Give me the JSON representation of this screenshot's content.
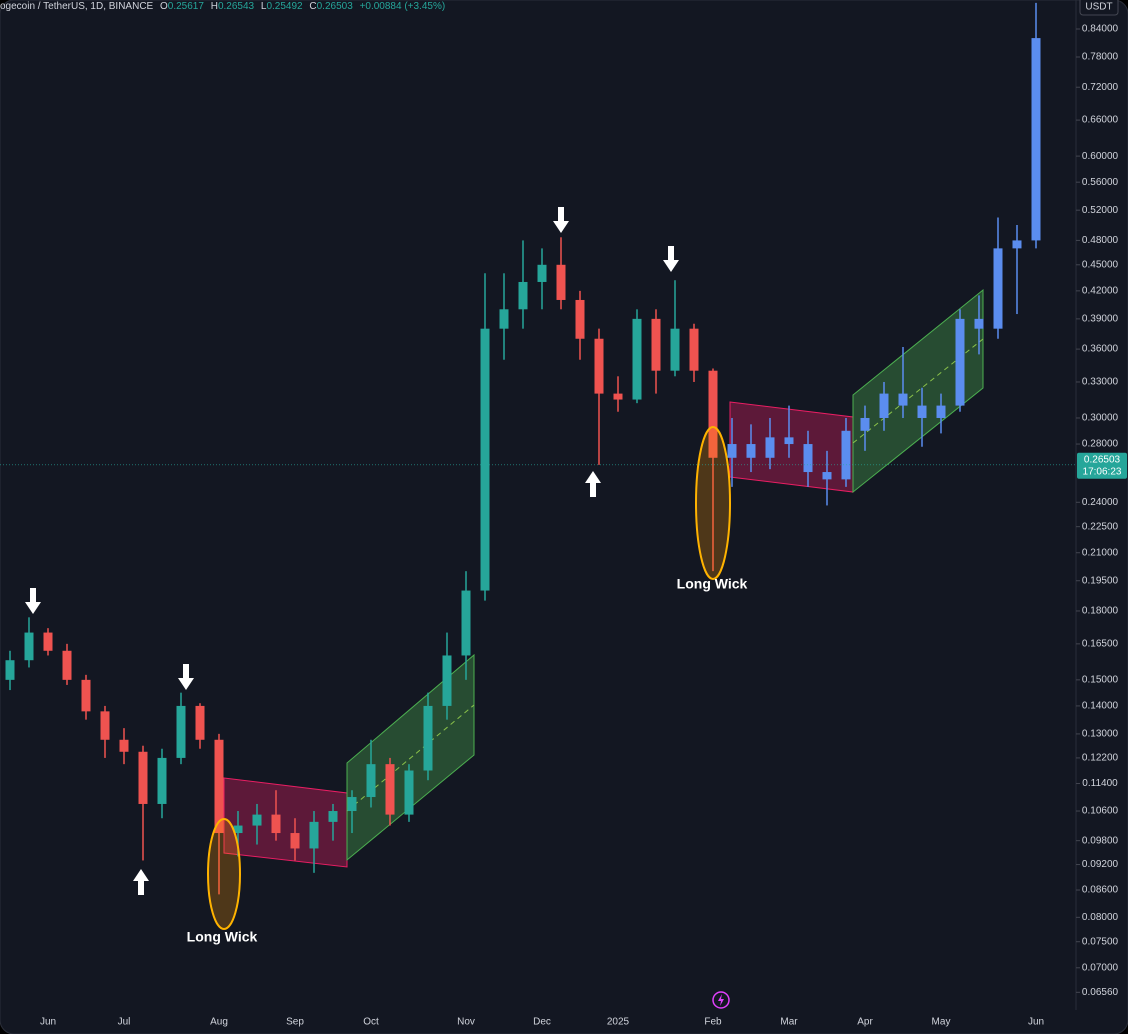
{
  "header": {
    "symbol": "ogecoin / TetherUS, 1D, BINANCE",
    "ohlc": [
      {
        "label": "O",
        "value": "0.25617"
      },
      {
        "label": "H",
        "value": "0.26543"
      },
      {
        "label": "L",
        "value": "0.25492"
      },
      {
        "label": "C",
        "value": "0.26503"
      }
    ],
    "change": "+0.00884 (+3.45%)"
  },
  "currency": "USDT",
  "annotations": [
    "Long Wick",
    "Long Wick"
  ],
  "chart_data": {
    "type": "candlestick",
    "log_scale": true,
    "grid": false,
    "up_color": "#26a69a",
    "down_color": "#ef5350",
    "projection_color": "#5b8def",
    "current_price": {
      "value": 0.26503,
      "label": "0.26503"
    },
    "countdown": "17:06:23",
    "ylim": [
      0.0626,
      0.907
    ],
    "yticks": [
      {
        "value": 0.84,
        "label": "0.84000"
      },
      {
        "value": 0.78,
        "label": "0.78000"
      },
      {
        "value": 0.72,
        "label": "0.72000"
      },
      {
        "value": 0.66,
        "label": "0.66000"
      },
      {
        "value": 0.6,
        "label": "0.60000"
      },
      {
        "value": 0.56,
        "label": "0.56000"
      },
      {
        "value": 0.52,
        "label": "0.52000"
      },
      {
        "value": 0.48,
        "label": "0.48000"
      },
      {
        "value": 0.45,
        "label": "0.45000"
      },
      {
        "value": 0.42,
        "label": "0.42000"
      },
      {
        "value": 0.39,
        "label": "0.39000"
      },
      {
        "value": 0.36,
        "label": "0.36000"
      },
      {
        "value": 0.33,
        "label": "0.33000"
      },
      {
        "value": 0.3,
        "label": "0.30000"
      },
      {
        "value": 0.28,
        "label": "0.28000"
      },
      {
        "value": 0.24,
        "label": "0.24000"
      },
      {
        "value": 0.225,
        "label": "0.22500"
      },
      {
        "value": 0.21,
        "label": "0.21000"
      },
      {
        "value": 0.195,
        "label": "0.19500"
      },
      {
        "value": 0.18,
        "label": "0.18000"
      },
      {
        "value": 0.165,
        "label": "0.16500"
      },
      {
        "value": 0.15,
        "label": "0.15000"
      },
      {
        "value": 0.14,
        "label": "0.14000"
      },
      {
        "value": 0.13,
        "label": "0.13000"
      },
      {
        "value": 0.122,
        "label": "0.12200"
      },
      {
        "value": 0.114,
        "label": "0.11400"
      },
      {
        "value": 0.106,
        "label": "0.10600"
      },
      {
        "value": 0.098,
        "label": "0.09800"
      },
      {
        "value": 0.092,
        "label": "0.09200"
      },
      {
        "value": 0.086,
        "label": "0.08600"
      },
      {
        "value": 0.08,
        "label": "0.08000"
      },
      {
        "value": 0.075,
        "label": "0.07500"
      },
      {
        "value": 0.07,
        "label": "0.07000"
      },
      {
        "value": 0.0656,
        "label": "0.06560"
      }
    ],
    "categories": [
      null,
      null,
      "Jun",
      null,
      null,
      null,
      "Jul",
      null,
      null,
      null,
      null,
      "Aug",
      null,
      null,
      null,
      "Sep",
      null,
      null,
      null,
      "Oct",
      null,
      null,
      null,
      null,
      "Nov",
      null,
      null,
      null,
      "Dec",
      null,
      null,
      null,
      "2025",
      null,
      null,
      null,
      null,
      "Feb",
      null,
      null,
      null,
      "Mar",
      null,
      null,
      null,
      "Apr",
      null,
      null,
      null,
      "May",
      null,
      null,
      null,
      null,
      "Jun"
    ],
    "open": [
      0.15,
      0.158,
      0.17,
      0.162,
      0.15,
      0.138,
      0.128,
      0.124,
      0.108,
      0.122,
      0.14,
      0.128,
      0.1,
      0.102,
      0.105,
      0.1,
      0.096,
      0.103,
      0.106,
      0.11,
      0.12,
      0.105,
      0.118,
      0.14,
      0.16,
      0.19,
      0.38,
      0.4,
      0.43,
      0.45,
      0.41,
      0.37,
      0.32,
      0.315,
      0.39,
      0.34,
      0.38,
      0.34,
      null,
      null,
      null,
      null,
      null,
      null,
      null,
      null,
      null,
      null,
      null,
      null,
      null,
      null,
      null,
      null,
      null
    ],
    "high": [
      0.162,
      0.177,
      0.172,
      0.165,
      0.152,
      0.14,
      0.132,
      0.126,
      0.125,
      0.145,
      0.141,
      0.13,
      0.106,
      0.108,
      0.112,
      0.104,
      0.106,
      0.108,
      0.112,
      0.128,
      0.122,
      0.12,
      0.145,
      0.17,
      0.2,
      0.44,
      0.44,
      0.48,
      0.47,
      0.484,
      0.42,
      0.38,
      0.335,
      0.4,
      0.4,
      0.432,
      0.385,
      0.342,
      null,
      null,
      null,
      null,
      null,
      null,
      null,
      null,
      null,
      null,
      null,
      null,
      null,
      null,
      null,
      null,
      null
    ],
    "low": [
      0.146,
      0.155,
      0.16,
      0.148,
      0.135,
      0.122,
      0.12,
      0.093,
      0.104,
      0.12,
      0.125,
      0.085,
      0.094,
      0.097,
      0.098,
      0.093,
      0.09,
      0.098,
      0.1,
      0.107,
      0.102,
      0.103,
      0.115,
      0.135,
      0.15,
      0.185,
      0.35,
      0.38,
      0.4,
      0.4,
      0.35,
      0.265,
      0.305,
      0.312,
      0.32,
      0.335,
      0.33,
      0.2,
      null,
      null,
      null,
      null,
      null,
      null,
      null,
      null,
      null,
      null,
      null,
      null,
      null,
      null,
      null,
      null,
      null
    ],
    "close": [
      0.158,
      0.17,
      0.162,
      0.15,
      0.138,
      0.128,
      0.124,
      0.108,
      0.122,
      0.14,
      0.128,
      0.1,
      0.102,
      0.105,
      0.1,
      0.096,
      0.103,
      0.106,
      0.11,
      0.12,
      0.105,
      0.118,
      0.14,
      0.16,
      0.19,
      0.38,
      0.4,
      0.43,
      0.45,
      0.41,
      0.37,
      0.32,
      0.315,
      0.39,
      0.34,
      0.38,
      0.34,
      0.27,
      null,
      null,
      null,
      null,
      null,
      null,
      null,
      null,
      null,
      null,
      null,
      null,
      null,
      null,
      null,
      null,
      null
    ],
    "projection": {
      "open": [
        null,
        null,
        null,
        null,
        null,
        null,
        null,
        null,
        null,
        null,
        null,
        null,
        null,
        null,
        null,
        null,
        null,
        null,
        null,
        null,
        null,
        null,
        null,
        null,
        null,
        null,
        null,
        null,
        null,
        null,
        null,
        null,
        null,
        null,
        null,
        null,
        null,
        null,
        0.27,
        0.28,
        0.27,
        0.285,
        0.28,
        0.26,
        0.255,
        0.29,
        0.3,
        0.32,
        0.31,
        0.3,
        0.31,
        0.39,
        0.38,
        0.47,
        0.48
      ],
      "high": [
        null,
        null,
        null,
        null,
        null,
        null,
        null,
        null,
        null,
        null,
        null,
        null,
        null,
        null,
        null,
        null,
        null,
        null,
        null,
        null,
        null,
        null,
        null,
        null,
        null,
        null,
        null,
        null,
        null,
        null,
        null,
        null,
        null,
        null,
        null,
        null,
        null,
        null,
        0.3,
        0.295,
        0.3,
        0.31,
        0.29,
        0.275,
        0.3,
        0.31,
        0.33,
        0.362,
        0.325,
        0.32,
        0.4,
        0.415,
        0.51,
        0.5,
        0.9
      ],
      "low": [
        null,
        null,
        null,
        null,
        null,
        null,
        null,
        null,
        null,
        null,
        null,
        null,
        null,
        null,
        null,
        null,
        null,
        null,
        null,
        null,
        null,
        null,
        null,
        null,
        null,
        null,
        null,
        null,
        null,
        null,
        null,
        null,
        null,
        null,
        null,
        null,
        null,
        null,
        0.25,
        0.26,
        0.262,
        0.27,
        0.25,
        0.238,
        0.25,
        0.275,
        0.29,
        0.3,
        0.278,
        0.288,
        0.305,
        0.355,
        0.37,
        0.395,
        0.47
      ],
      "close": [
        null,
        null,
        null,
        null,
        null,
        null,
        null,
        null,
        null,
        null,
        null,
        null,
        null,
        null,
        null,
        null,
        null,
        null,
        null,
        null,
        null,
        null,
        null,
        null,
        null,
        null,
        null,
        null,
        null,
        null,
        null,
        null,
        null,
        null,
        null,
        null,
        null,
        null,
        0.28,
        0.27,
        0.285,
        0.28,
        0.26,
        0.255,
        0.29,
        0.3,
        0.32,
        0.31,
        0.3,
        0.31,
        0.39,
        0.38,
        0.47,
        0.48,
        0.82
      ]
    }
  }
}
